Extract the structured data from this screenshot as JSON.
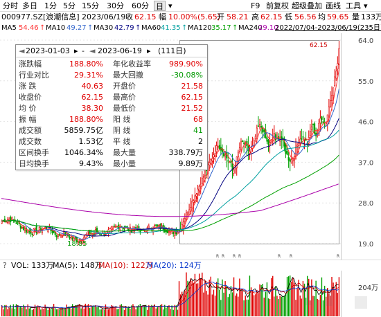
{
  "tabs": {
    "items": [
      "分时",
      "多日",
      "1分",
      "5分",
      "15分",
      "30分",
      "60分",
      "日"
    ],
    "active": "日",
    "dropdown_glyph": "▾",
    "right_menu": [
      "F9",
      "前复权",
      "超级叠加",
      "画线",
      "工具"
    ],
    "more_glyph": "▾"
  },
  "quote": {
    "code_name": "000977.SZ[浪潮信息]",
    "date": "2023/06/19",
    "close_label": "收",
    "close": "62.15",
    "change_label": "幅",
    "change": "10.00%(5.65)",
    "open_label": "开",
    "open": "58.21",
    "high_label": "高",
    "high": "62.15",
    "low_label": "低",
    "low": "56.56",
    "avg_label": "均",
    "avg": "59.65",
    "volume_label": "量",
    "volume": "133万"
  },
  "ma": {
    "items": [
      {
        "label": "MA5",
        "value": "54.46",
        "arrow": "↑",
        "color": "#ff3333"
      },
      {
        "label": "MA10",
        "value": "49.27",
        "arrow": "↑",
        "color": "#3366cc"
      },
      {
        "label": "MA30",
        "value": "42.79",
        "arrow": "↑",
        "color": "#000080"
      },
      {
        "label": "MA60",
        "value": "41.35",
        "arrow": "↑",
        "color": "#00a0a0"
      },
      {
        "label": "MA120",
        "value": "35.17",
        "arrow": "↑",
        "color": "#00a000"
      },
      {
        "label": "MA240",
        "value": "29.10",
        "arrow": "↑",
        "color": "#aa00aa"
      }
    ],
    "range": "2022/07/04-2023/06/19(235日)"
  },
  "stats_panel": {
    "start_date": "2023-01-03",
    "end_date": "2023-06-19",
    "sep": "-",
    "days": "(111日)",
    "rows": [
      {
        "l1": "涨跌幅",
        "v1": "188.80%",
        "c1": "#e00000",
        "l2": "年化收益率",
        "v2": "989.90%",
        "c2": "#e00000"
      },
      {
        "l1": "行业对比",
        "v1": "29.31%",
        "c1": "#e00000",
        "l2": "最大回撤",
        "v2": "-30.08%",
        "c2": "#009900"
      },
      {
        "l1": "涨  跌",
        "v1": "40.63",
        "c1": "#e00000",
        "l2": "开盘价",
        "v2": "21.58",
        "c2": "#e00000"
      },
      {
        "l1": "收盘价",
        "v1": "62.15",
        "c1": "#e00000",
        "l2": "最高价",
        "v2": "62.15",
        "c2": "#e00000"
      },
      {
        "l1": "均  价",
        "v1": "38.30",
        "c1": "#e00000",
        "l2": "最低价",
        "v2": "21.52",
        "c2": "#e00000"
      },
      {
        "l1": "振  幅",
        "v1": "188.80%",
        "c1": "#e00000",
        "l2": "阳  线",
        "v2": "68",
        "c2": "#e00000"
      },
      {
        "l1": "成交额",
        "v1": "5859.75亿",
        "c1": "#000000",
        "l2": "阴  线",
        "v2": "41",
        "c2": "#009900"
      },
      {
        "l1": "成交数",
        "v1": "1.53亿",
        "c1": "#000000",
        "l2": "平  线",
        "v2": "2",
        "c2": "#000000"
      },
      {
        "l1": "区间换手",
        "v1": "1046.34%",
        "c1": "#000000",
        "l2": "最大量",
        "v2": "338.79万",
        "c2": "#000000"
      },
      {
        "l1": "日均换手",
        "v1": "9.43%",
        "c1": "#000000",
        "l2": "最小量",
        "v2": "9.89万",
        "c2": "#000000"
      }
    ]
  },
  "price_axis": {
    "ticks": [
      "64.0",
      "55.0",
      "46.0",
      "37.0",
      "28.0",
      "19.0"
    ]
  },
  "chart_labels": {
    "high_mark": "62.15",
    "low_mark": "18.85",
    "event_marks": [
      "R",
      "R",
      "R",
      "R",
      "R",
      "R",
      "R"
    ]
  },
  "volume_row": {
    "glyph": "?",
    "vol_label": "VOL: 133万",
    "ma5_label": "MA(5): 148万",
    "ma10_label": "MA(10): 122万",
    "ma20_label": "MA(20): 124万",
    "axis_tick": "204万",
    "colors": {
      "vol": "#000000",
      "ma5": "#000000",
      "ma10": "#cc0000",
      "ma20": "#0033cc"
    }
  },
  "colors": {
    "up": "#e00000",
    "down": "#00a000",
    "selection": "#b0b0b0",
    "accent": "#cc0000"
  }
}
